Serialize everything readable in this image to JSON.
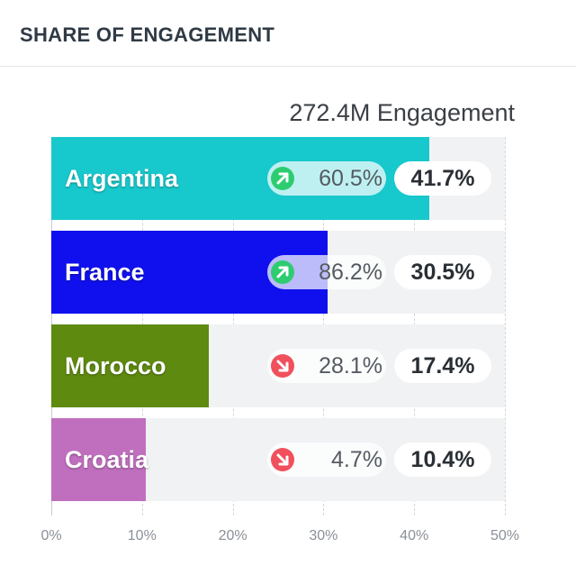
{
  "header": {
    "title": "SHARE OF ENGAGEMENT"
  },
  "summary": {
    "total": "272.4M Engagement"
  },
  "colors": {
    "up": "#2ecc71",
    "down": "#f0505c",
    "Argentina": "#17c8cc",
    "France": "#1010ee",
    "Morocco": "#5e8a10",
    "Croatia": "#c06fbf"
  },
  "chart_data": {
    "type": "bar",
    "orientation": "horizontal",
    "title": "SHARE OF ENGAGEMENT",
    "subtitle": "272.4M Engagement",
    "xlim": [
      0,
      50
    ],
    "x_ticks": [
      "0%",
      "10%",
      "20%",
      "30%",
      "40%",
      "50%"
    ],
    "categories": [
      "Argentina",
      "France",
      "Morocco",
      "Croatia"
    ],
    "values": [
      41.7,
      30.5,
      17.4,
      10.4
    ],
    "share_labels": [
      "41.7%",
      "30.5%",
      "17.4%",
      "10.4%"
    ],
    "change_labels": [
      "60.5%",
      "86.2%",
      "28.1%",
      "4.7%"
    ],
    "change_direction": [
      "up",
      "up",
      "down",
      "down"
    ],
    "grid": true
  }
}
